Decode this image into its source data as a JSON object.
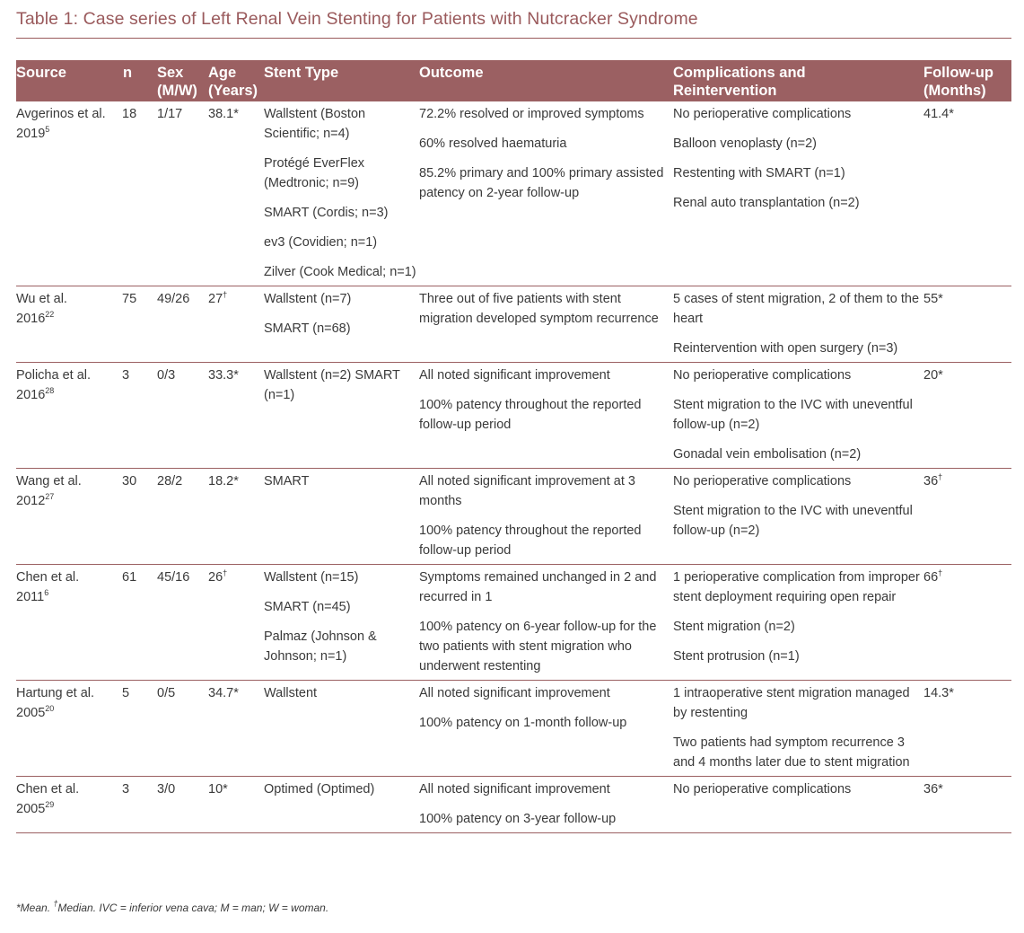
{
  "title": "Table 1: Case series of Left Renal Vein Stenting for Patients with Nutcracker Syndrome",
  "headers": {
    "source": "Source",
    "n": "n",
    "sex_line1": "Sex",
    "sex_line2": "(M/W)",
    "age_line1": "Age",
    "age_line2": "(Years)",
    "stent": "Stent Type",
    "outcome": "Outcome",
    "comp_line1": "Complications and",
    "comp_line2": "Reintervention",
    "fu_line1": "Follow-up",
    "fu_line2": "(Months)"
  },
  "rows": [
    {
      "source_line1": "Avgerinos et al.",
      "source_year": "2019",
      "source_ref": "5",
      "n": "18",
      "sex": "1/17",
      "age": "38.1*",
      "stent": [
        "Wallstent (Boston Scientific; n=4)",
        "Protégé EverFlex (Medtronic; n=9)",
        "SMART (Cordis; n=3)",
        "ev3 (Covidien; n=1)",
        "Zilver (Cook Medical; n=1)"
      ],
      "outcome": [
        "72.2% resolved or improved symptoms",
        "60% resolved haematuria",
        "85.2% primary and 100% primary assisted patency on 2-year follow-up"
      ],
      "complications": [
        "No perioperative complications",
        "Balloon venoplasty (n=2)",
        "Restenting with SMART (n=1)",
        "Renal auto transplantation (n=2)"
      ],
      "followup": "41.4*"
    },
    {
      "source_line1": "Wu et al.",
      "source_year": "2016",
      "source_ref": "22",
      "n": "75",
      "sex": "49/26",
      "age": "27†",
      "stent": [
        "Wallstent (n=7)",
        "SMART (n=68)"
      ],
      "outcome": [
        "Three out of five patients with stent migration developed symptom recurrence"
      ],
      "complications": [
        "5 cases of stent migration, 2 of them to the heart",
        "Reintervention with open surgery (n=3)"
      ],
      "followup": "55*"
    },
    {
      "source_line1": "Policha et al.",
      "source_year": "2016",
      "source_ref": "28",
      "n": "3",
      "sex": "0/3",
      "age": "33.3*",
      "stent": [
        "Wallstent (n=2) SMART (n=1)"
      ],
      "outcome": [
        "All noted significant improvement",
        "100% patency throughout the reported follow-up period"
      ],
      "complications": [
        "No perioperative complications",
        "Stent migration to the IVC with uneventful follow-up (n=2)",
        "Gonadal vein embolisation (n=2)"
      ],
      "followup": "20*"
    },
    {
      "source_line1": "Wang et al.",
      "source_year": "2012",
      "source_ref": "27",
      "n": "30",
      "sex": "28/2",
      "age": "18.2*",
      "stent": [
        "SMART"
      ],
      "outcome": [
        "All noted significant improvement at 3 months",
        "100% patency throughout the reported follow-up period"
      ],
      "complications": [
        "No perioperative complications",
        "Stent migration to the IVC with uneventful follow-up (n=2)"
      ],
      "followup": "36†"
    },
    {
      "source_line1": "Chen et al.",
      "source_year": "2011",
      "source_ref": "6",
      "n": "61",
      "sex": "45/16",
      "age": "26†",
      "stent": [
        "Wallstent (n=15)",
        "SMART (n=45)",
        "Palmaz (Johnson & Johnson; n=1)"
      ],
      "outcome": [
        "Symptoms remained unchanged in 2 and recurred in 1",
        "100% patency on 6-year follow-up for the two patients with stent migration who underwent restenting"
      ],
      "complications": [
        "1 perioperative complication from improper stent deployment requiring open repair",
        "Stent migration (n=2)",
        "Stent protrusion (n=1)"
      ],
      "followup": "66†"
    },
    {
      "source_line1": "Hartung et al.",
      "source_year": "2005",
      "source_ref": "20",
      "n": "5",
      "sex": "0/5",
      "age": "34.7*",
      "stent": [
        "Wallstent"
      ],
      "outcome": [
        "All noted significant improvement",
        "100% patency on 1-month follow-up"
      ],
      "complications": [
        "1 intraoperative stent migration managed by restenting",
        "Two patients had symptom recurrence 3 and 4 months later due to stent migration"
      ],
      "followup": "14.3*"
    },
    {
      "source_line1": "Chen et al.",
      "source_year": "2005",
      "source_ref": "29",
      "n": "3",
      "sex": "3/0",
      "age": "10*",
      "stent": [
        "Optimed (Optimed)"
      ],
      "outcome": [
        "All noted significant improvement",
        "100% patency on 3-year follow-up"
      ],
      "complications": [
        "No perioperative complications"
      ],
      "followup": "36*"
    }
  ],
  "footnote_mean": "*Mean. ",
  "footnote_dagger": "†",
  "footnote_rest": "Median. IVC = inferior vena cava; M = man; W = woman."
}
